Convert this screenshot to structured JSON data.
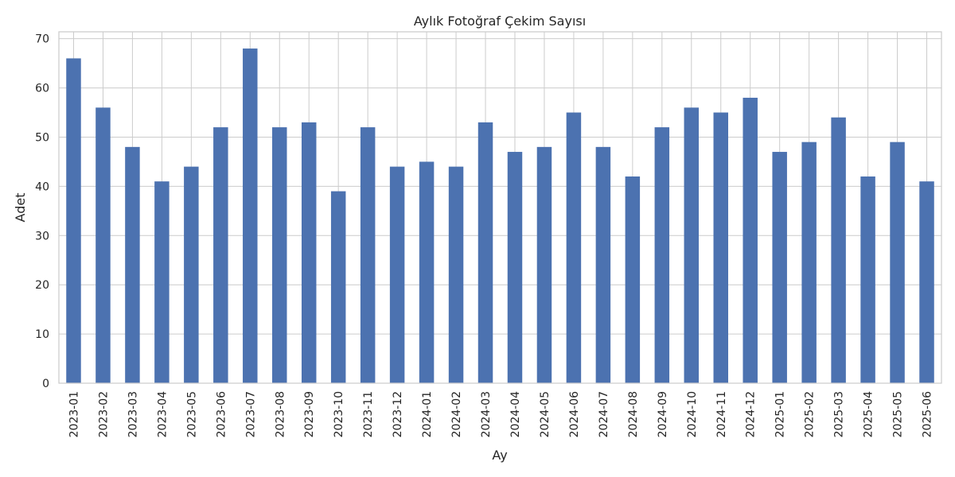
{
  "chart_data": {
    "type": "bar",
    "title": "Aylık Fotoğraf Çekim Sayısı",
    "xlabel": "Ay",
    "ylabel": "Adet",
    "ylim": [
      0,
      71.4
    ],
    "yticks": [
      0,
      10,
      20,
      30,
      40,
      50,
      60,
      70
    ],
    "grid": true,
    "bar_color": "#4c72b0",
    "categories": [
      "2023-01",
      "2023-02",
      "2023-03",
      "2023-04",
      "2023-05",
      "2023-06",
      "2023-07",
      "2023-08",
      "2023-09",
      "2023-10",
      "2023-11",
      "2023-12",
      "2024-01",
      "2024-02",
      "2024-03",
      "2024-04",
      "2024-05",
      "2024-06",
      "2024-07",
      "2024-08",
      "2024-09",
      "2024-10",
      "2024-11",
      "2024-12",
      "2025-01",
      "2025-02",
      "2025-03",
      "2025-04",
      "2025-05",
      "2025-06"
    ],
    "values": [
      66,
      56,
      48,
      41,
      44,
      52,
      68,
      52,
      53,
      39,
      52,
      44,
      45,
      44,
      53,
      47,
      48,
      55,
      48,
      42,
      52,
      56,
      55,
      58,
      47,
      49,
      54,
      42,
      49,
      41
    ]
  }
}
